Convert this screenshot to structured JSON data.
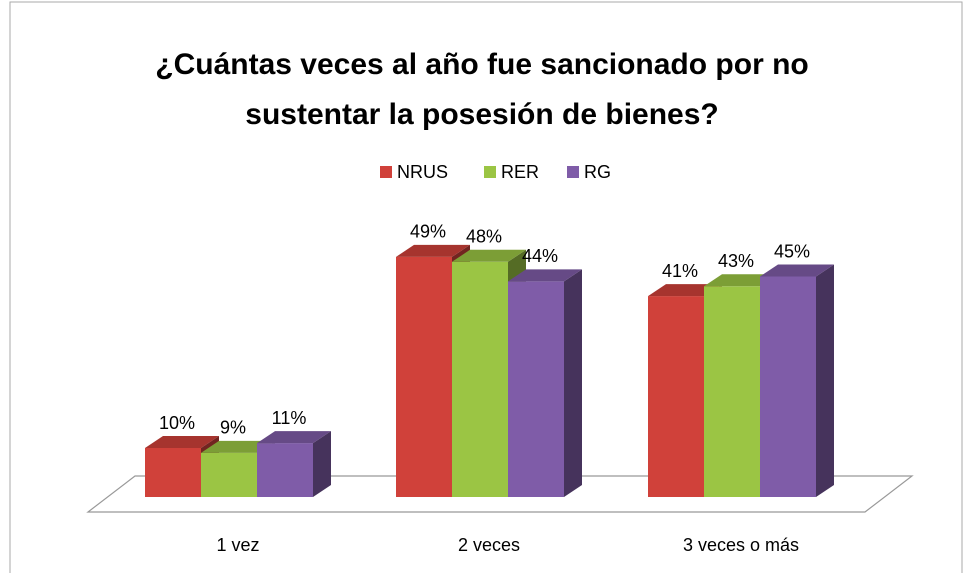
{
  "chart_data": {
    "type": "bar3d",
    "title": "¿Cuántas veces al año fue sancionado por no sustentar la posesión de bienes?",
    "categories": [
      "1 vez",
      "2 veces",
      "3 veces o más"
    ],
    "series": [
      {
        "name": "NRUS",
        "color": "#d0413a",
        "values": [
          10,
          49,
          41
        ],
        "value_labels": [
          "10%",
          "49%",
          "41%"
        ]
      },
      {
        "name": "RER",
        "color": "#9bc544",
        "values": [
          9,
          48,
          43
        ],
        "value_labels": [
          "9%",
          "48%",
          "43%"
        ]
      },
      {
        "name": "RG",
        "color": "#7f5ca8",
        "values": [
          11,
          44,
          45
        ],
        "value_labels": [
          "11%",
          "44%",
          "45%"
        ]
      }
    ],
    "legend": "top"
  }
}
